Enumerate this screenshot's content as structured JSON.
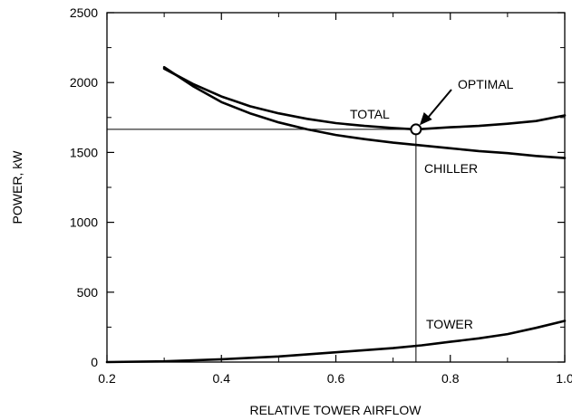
{
  "chart_data": {
    "type": "line",
    "xlabel": "RELATIVE TOWER AIRFLOW",
    "ylabel": "POWER, kW",
    "xlim": [
      0.2,
      1.0
    ],
    "ylim": [
      0,
      2500
    ],
    "x_ticks": [
      "0.2",
      "0.4",
      "0.6",
      "0.8",
      "1.0"
    ],
    "y_ticks": [
      "0",
      "500",
      "1000",
      "1500",
      "2000",
      "2500"
    ],
    "grid": false,
    "series": [
      {
        "name": "TOTAL",
        "x": [
          0.3,
          0.35,
          0.4,
          0.45,
          0.5,
          0.55,
          0.6,
          0.65,
          0.7,
          0.74,
          0.8,
          0.85,
          0.9,
          0.95,
          1.0
        ],
        "y": [
          2100,
          1990,
          1900,
          1830,
          1780,
          1740,
          1710,
          1690,
          1675,
          1665,
          1680,
          1690,
          1705,
          1725,
          1765
        ]
      },
      {
        "name": "CHILLER",
        "x": [
          0.3,
          0.35,
          0.4,
          0.45,
          0.5,
          0.55,
          0.6,
          0.65,
          0.7,
          0.75,
          0.8,
          0.85,
          0.9,
          0.95,
          1.0
        ],
        "y": [
          2110,
          1975,
          1860,
          1780,
          1715,
          1665,
          1625,
          1595,
          1570,
          1550,
          1530,
          1510,
          1495,
          1475,
          1460
        ]
      },
      {
        "name": "TOWER",
        "x": [
          0.2,
          0.3,
          0.4,
          0.5,
          0.6,
          0.7,
          0.75,
          0.8,
          0.85,
          0.9,
          0.95,
          1.0
        ],
        "y": [
          0,
          5,
          20,
          40,
          70,
          100,
          120,
          145,
          170,
          200,
          245,
          295
        ]
      }
    ],
    "reference_lines": [
      {
        "axis": "y",
        "value": 1665,
        "from_x": 0.2,
        "to_x": 0.74
      },
      {
        "axis": "x",
        "value": 0.74,
        "from_y": 0,
        "to_y": 1665
      }
    ],
    "annotations": [
      {
        "text": "OPTIMAL",
        "x": 0.74,
        "y": 1665,
        "arrow": true
      }
    ]
  }
}
